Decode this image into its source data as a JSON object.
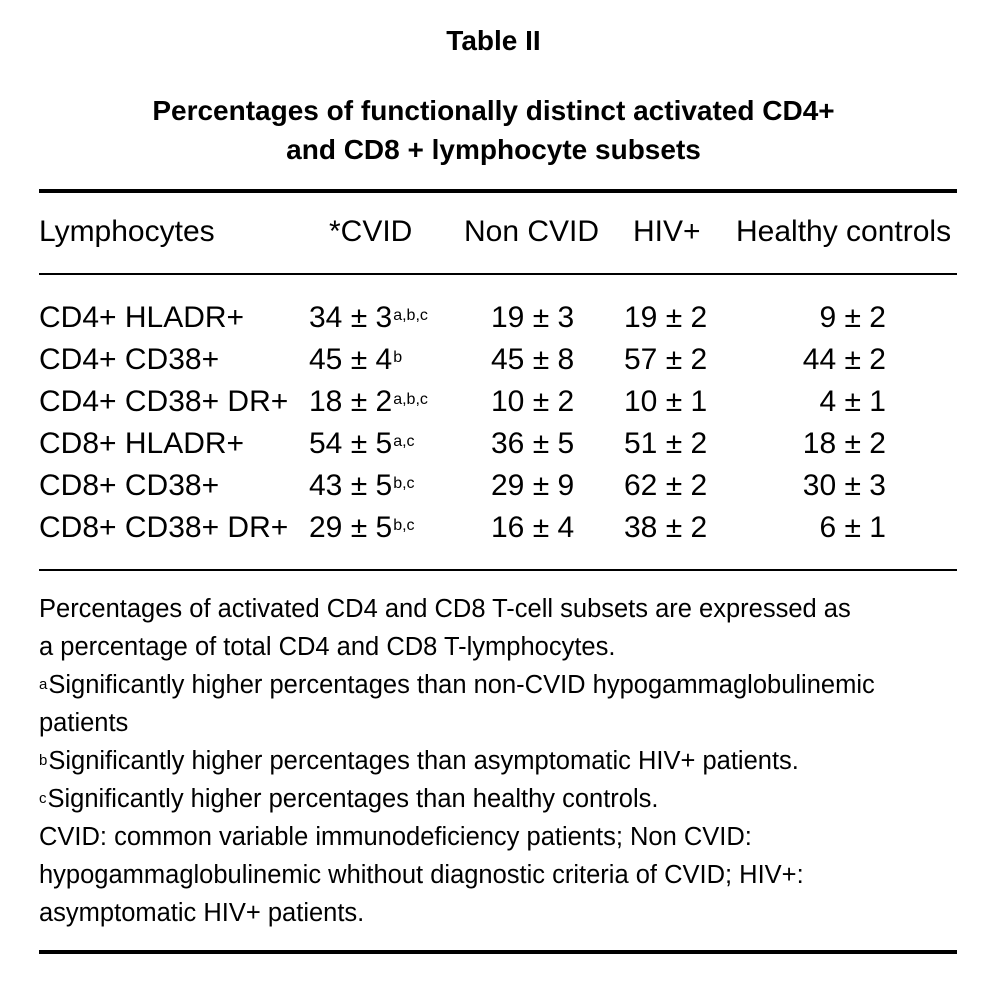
{
  "table": {
    "label": "Table II",
    "title_line1": "Percentages of functionally distinct activated CD4+",
    "title_line2": "and CD8 + lymphocyte subsets",
    "headers": [
      "Lymphocytes",
      "*CVID",
      "Non CVID",
      "HIV+",
      "Healthy controls"
    ],
    "rows": [
      {
        "label": "CD4+ HLADR+",
        "cvid": "34 ± 3",
        "cvid_sup": "a,b,c",
        "noncvid": "19 ± 3",
        "hiv": "19 ± 2",
        "healthy": "9 ± 2"
      },
      {
        "label": "CD4+ CD38+",
        "cvid": "45 ± 4",
        "cvid_sup": "b",
        "noncvid": "45 ± 8",
        "hiv": "57 ± 2",
        "healthy": "44 ± 2"
      },
      {
        "label": "CD4+ CD38+ DR+",
        "cvid": "18 ± 2",
        "cvid_sup": "a,b,c",
        "noncvid": "10 ± 2",
        "hiv": "10 ± 1",
        "healthy": "4 ± 1"
      },
      {
        "label": "CD8+ HLADR+",
        "cvid": "54 ± 5",
        "cvid_sup": "a,c",
        "noncvid": "36 ± 5",
        "hiv": "51 ± 2",
        "healthy": "18 ± 2"
      },
      {
        "label": "CD8+ CD38+",
        "cvid": "43 ± 5",
        "cvid_sup": "b,c",
        "noncvid": "29 ± 9",
        "hiv": "62 ± 2",
        "healthy": "30 ± 3"
      },
      {
        "label": "CD8+ CD38+ DR+",
        "cvid": "29 ± 5",
        "cvid_sup": "b,c",
        "noncvid": "16 ± 4",
        "hiv": "38 ± 2",
        "healthy": "6 ± 1"
      }
    ]
  },
  "notes": {
    "intro_line1": "Percentages of activated CD4 and CD8 T-cell subsets are expressed as",
    "intro_line2": "a percentage of total CD4 and CD8 T-lymphocytes.",
    "a_mark": "a",
    "a_text_line1": "Significantly higher percentages than non-CVID hypogammaglobulinemic",
    "a_text_line2": "patients",
    "b_mark": "b",
    "b_text": "Significantly higher percentages than asymptomatic HIV+ patients.",
    "c_mark": "c",
    "c_text": "Significantly higher percentages than healthy controls.",
    "abbr_line1": "CVID: common variable immunodeficiency patients; Non CVID:",
    "abbr_line2": "hypogammaglobulinemic whithout diagnostic criteria of CVID; HIV+:",
    "abbr_line3": "asymptomatic HIV+ patients."
  }
}
